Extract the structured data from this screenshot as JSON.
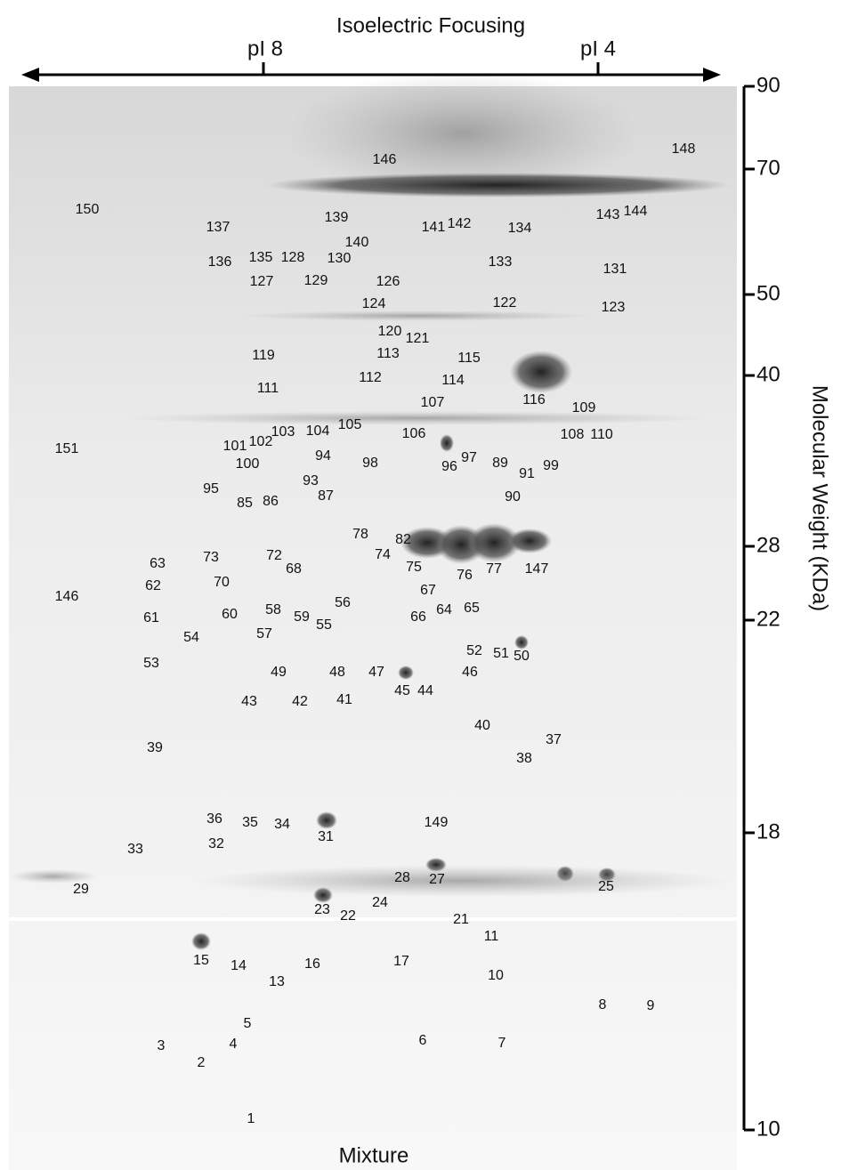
{
  "header": {
    "title": "Isoelectric Focusing",
    "left_marker": "pI 8",
    "right_marker": "pI 4"
  },
  "mw_axis": {
    "title": "Molecular Weight (KDa)",
    "ticks": [
      "90",
      "70",
      "50",
      "40",
      "28",
      "22",
      "18",
      "10"
    ]
  },
  "footer": {
    "label": "Mixture"
  },
  "spots": [
    "146",
    "148",
    "150",
    "137",
    "139",
    "140",
    "141",
    "142",
    "134",
    "143",
    "144",
    "136",
    "135",
    "128",
    "130",
    "133",
    "131",
    "127",
    "129",
    "126",
    "124",
    "122",
    "123",
    "120",
    "121",
    "119",
    "113",
    "115",
    "112",
    "114",
    "116",
    "111",
    "107",
    "109",
    "108",
    "110",
    "105",
    "104",
    "103",
    "106",
    "102",
    "101",
    "151",
    "94",
    "97",
    "89",
    "91",
    "99",
    "100",
    "98",
    "96",
    "93",
    "95",
    "90",
    "87",
    "85",
    "86",
    "78",
    "82",
    "63",
    "73",
    "72",
    "68",
    "74",
    "75",
    "76",
    "77",
    "147",
    "62",
    "70",
    "146",
    "67",
    "56",
    "64",
    "65",
    "61",
    "60",
    "58",
    "59",
    "55",
    "66",
    "57",
    "54",
    "52",
    "51",
    "50",
    "53",
    "49",
    "48",
    "47",
    "45",
    "44",
    "46",
    "43",
    "42",
    "41",
    "40",
    "37",
    "39",
    "38",
    "36",
    "35",
    "34",
    "149",
    "31",
    "32",
    "33",
    "28",
    "27",
    "25",
    "29",
    "24",
    "23",
    "22",
    "21",
    "11",
    "15",
    "14",
    "16",
    "17",
    "10",
    "13",
    "8",
    "9",
    "5",
    "3",
    "4",
    "6",
    "7",
    "2",
    "1"
  ]
}
